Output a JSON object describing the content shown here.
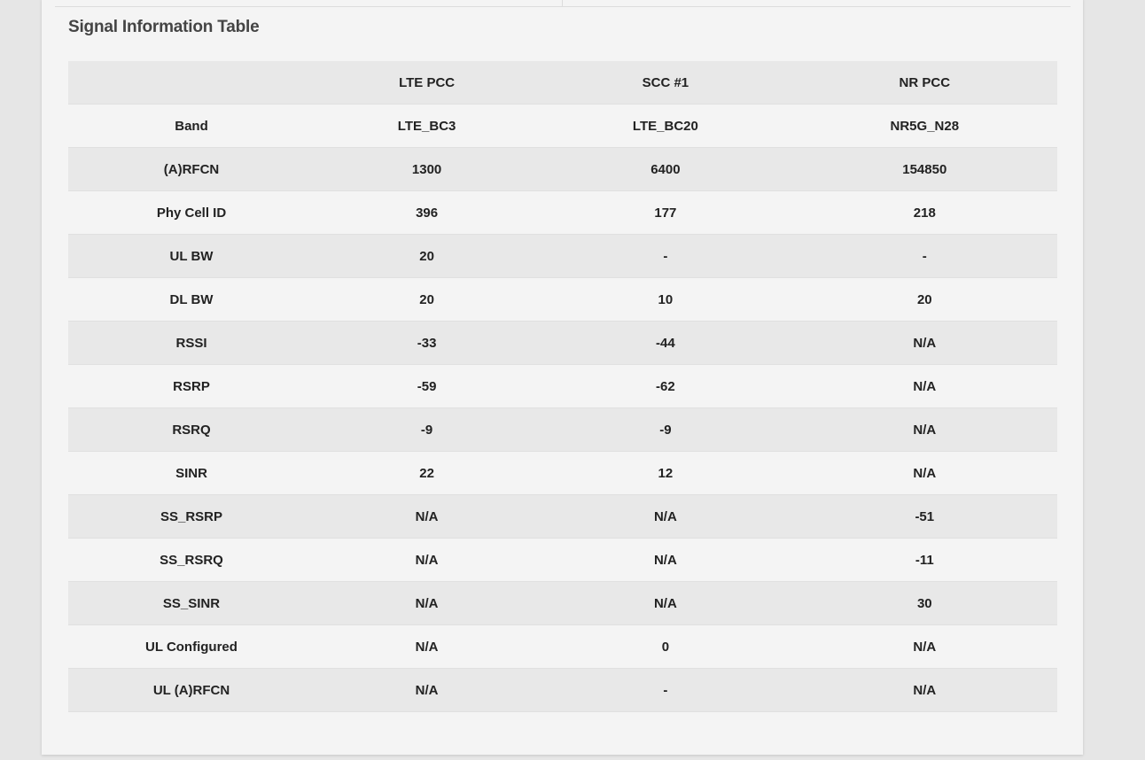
{
  "title": "Signal Information Table",
  "columns": [
    "",
    "LTE PCC",
    "SCC #1",
    "NR PCC"
  ],
  "rows": [
    [
      "Band",
      "LTE_BC3",
      "LTE_BC20",
      "NR5G_N28"
    ],
    [
      "(A)RFCN",
      "1300",
      "6400",
      "154850"
    ],
    [
      "Phy Cell ID",
      "396",
      "177",
      "218"
    ],
    [
      "UL BW",
      "20",
      "-",
      "-"
    ],
    [
      "DL BW",
      "20",
      "10",
      "20"
    ],
    [
      "RSSI",
      "-33",
      "-44",
      "N/A"
    ],
    [
      "RSRP",
      "-59",
      "-62",
      "N/A"
    ],
    [
      "RSRQ",
      "-9",
      "-9",
      "N/A"
    ],
    [
      "SINR",
      "22",
      "12",
      "N/A"
    ],
    [
      "SS_RSRP",
      "N/A",
      "N/A",
      "-51"
    ],
    [
      "SS_RSRQ",
      "N/A",
      "N/A",
      "-11"
    ],
    [
      "SS_SINR",
      "N/A",
      "N/A",
      "30"
    ],
    [
      "UL Configured",
      "N/A",
      "0",
      "N/A"
    ],
    [
      "UL (A)RFCN",
      "N/A",
      "-",
      "N/A"
    ]
  ]
}
